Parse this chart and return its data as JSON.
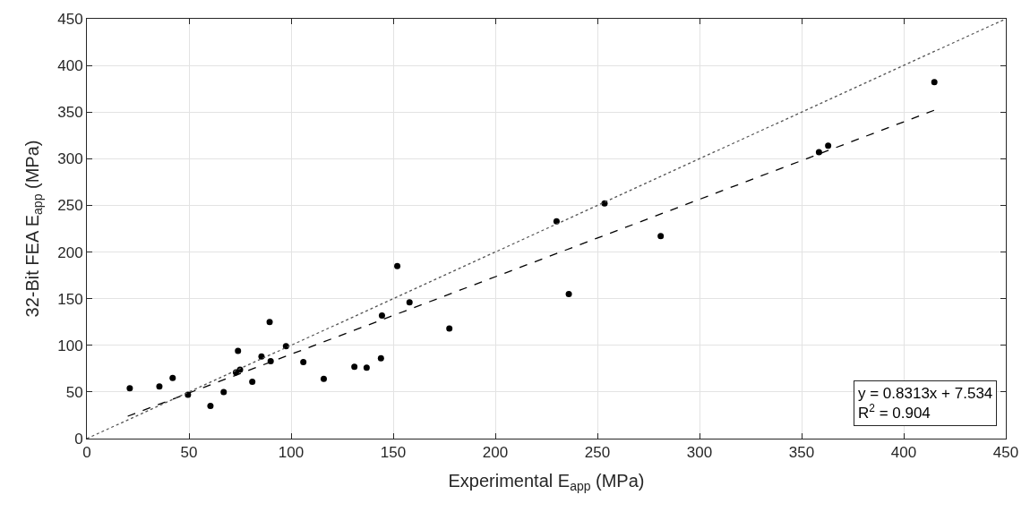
{
  "chart_data": {
    "type": "scatter",
    "xlabel": "Experimental E$_{app}$ (MPa)",
    "ylabel": "32-Bit FEA E$_{app}$ (MPa)",
    "xlim": [
      0,
      450
    ],
    "ylim": [
      0,
      450
    ],
    "xticks": [
      0,
      50,
      100,
      150,
      200,
      250,
      300,
      350,
      400,
      450
    ],
    "yticks": [
      0,
      50,
      100,
      150,
      200,
      250,
      300,
      350,
      400,
      450
    ],
    "grid": true,
    "legend": false,
    "marker": "circle",
    "series": [
      {
        "color": "#000000",
        "x": [
          21,
          35.5,
          42,
          49.5,
          60.5,
          67,
          73,
          74,
          75,
          81,
          85.5,
          89.5,
          90,
          97.5,
          106,
          116,
          131,
          137,
          144,
          144.5,
          152,
          158,
          177.5,
          230,
          236,
          253.5,
          281,
          358.5,
          363,
          415
        ],
        "values": [
          54,
          56,
          65,
          47,
          35,
          50,
          71,
          94,
          74,
          61,
          88,
          125,
          83,
          99,
          82,
          64,
          77,
          76,
          86,
          132,
          185,
          146,
          118,
          233,
          155,
          252,
          217,
          307,
          314,
          382
        ]
      },
      {
        "type": "line",
        "color": "#000000",
        "line_style": "dashed",
        "marker": "none",
        "x": [
          20,
          415
        ],
        "values": [
          24,
          352
        ]
      },
      {
        "type": "line",
        "color": "#555555",
        "line_style": "dotted",
        "marker": "none",
        "x": [
          0,
          450
        ],
        "values": [
          0,
          450
        ]
      }
    ],
    "annotations": [
      "y = 0.8313x + 7.534",
      "R$^{2}$ = 0.904"
    ]
  }
}
